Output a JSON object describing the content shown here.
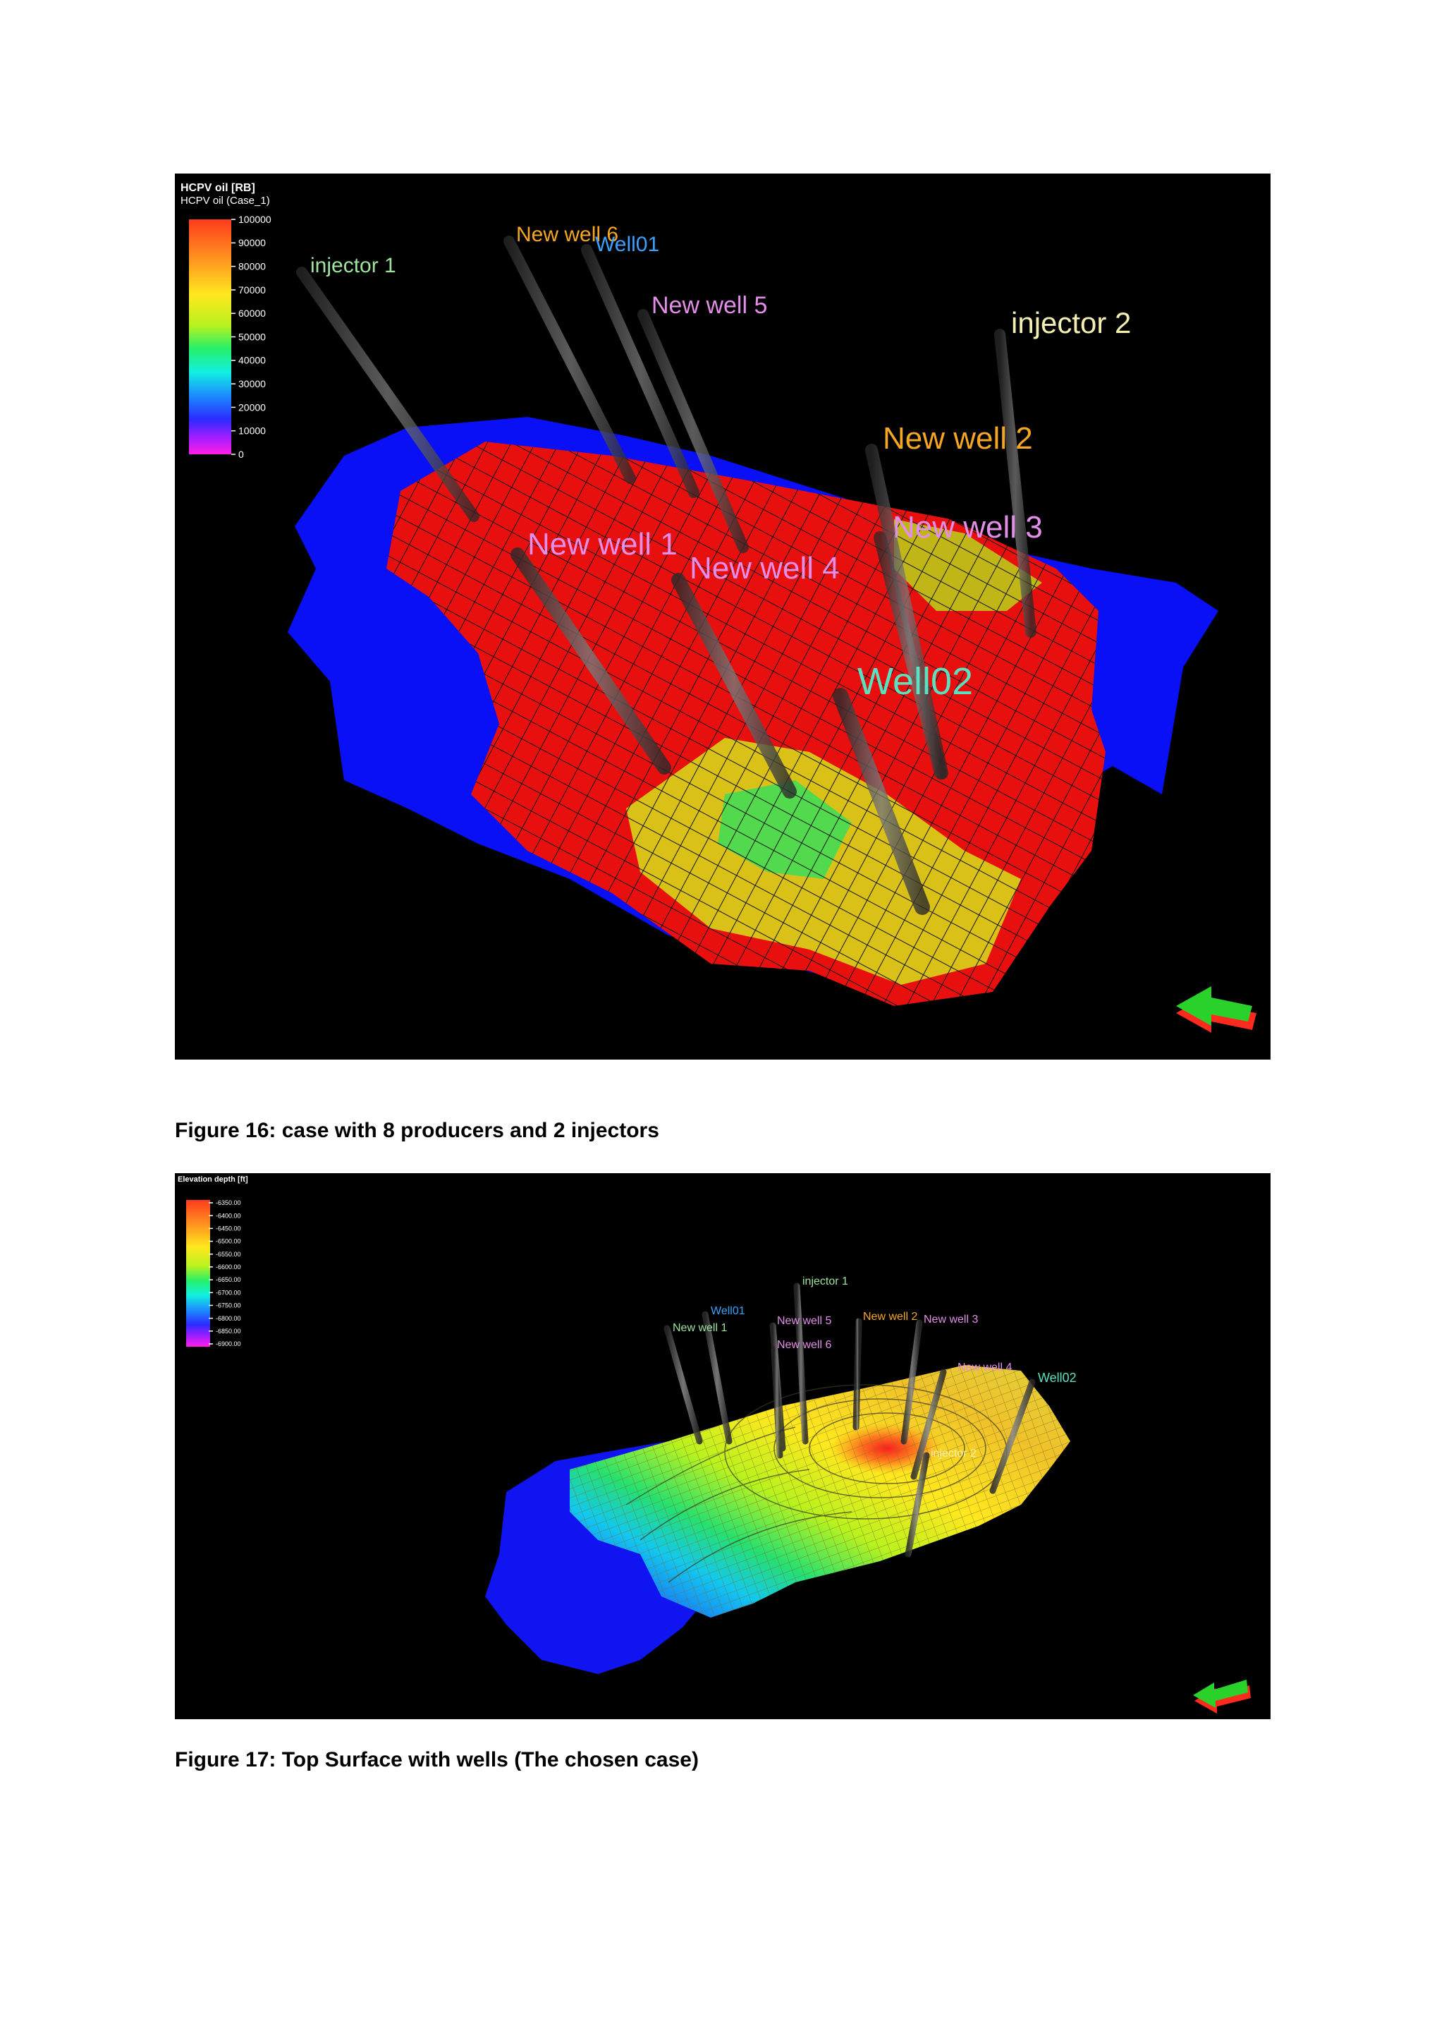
{
  "figure16": {
    "legend": {
      "title": "HCPV oil [RB]",
      "subtitle": "HCPV oil (Case_1)",
      "ticks": [
        "100000",
        "90000",
        "80000",
        "70000",
        "60000",
        "50000",
        "40000",
        "30000",
        "20000",
        "10000",
        "0"
      ]
    },
    "wells": [
      {
        "name": "injector 1",
        "color": "#9fe39f"
      },
      {
        "name": "New well 6",
        "color": "#f5a623"
      },
      {
        "name": "Well01",
        "color": "#3aa0ff"
      },
      {
        "name": "New well 5",
        "color": "#e38ee8"
      },
      {
        "name": "injector 2",
        "color": "#f3efb0"
      },
      {
        "name": "New well 2",
        "color": "#f5a623"
      },
      {
        "name": "New well 3",
        "color": "#e38ee8"
      },
      {
        "name": "New well 1",
        "color": "#e38ee8"
      },
      {
        "name": "New well 4",
        "color": "#e38ee8"
      },
      {
        "name": "Well02",
        "color": "#5be0c0"
      }
    ],
    "caption": "Figure 16: case with 8 producers and 2 injectors"
  },
  "figure17": {
    "legend": {
      "title": "Elevation depth [ft]",
      "ticks": [
        "-6350.00",
        "-6400.00",
        "-6450.00",
        "-6500.00",
        "-6550.00",
        "-6600.00",
        "-6650.00",
        "-6700.00",
        "-6750.00",
        "-6800.00",
        "-6850.00",
        "-6900.00"
      ]
    },
    "wells": [
      {
        "name": "injector 1",
        "color": "#9fe39f"
      },
      {
        "name": "Well01",
        "color": "#3aa0ff"
      },
      {
        "name": "New well 1",
        "color": "#9fe39f"
      },
      {
        "name": "New well 5",
        "color": "#e38ee8"
      },
      {
        "name": "New well 6",
        "color": "#e38ee8"
      },
      {
        "name": "New well 2",
        "color": "#f5a623"
      },
      {
        "name": "New well 3",
        "color": "#e38ee8"
      },
      {
        "name": "New well 4",
        "color": "#e38ee8"
      },
      {
        "name": "Well02",
        "color": "#5be0c0"
      },
      {
        "name": "injector 2",
        "color": "#f3efb0"
      }
    ],
    "caption": "Figure 17: Top Surface with wells (The chosen case)"
  }
}
